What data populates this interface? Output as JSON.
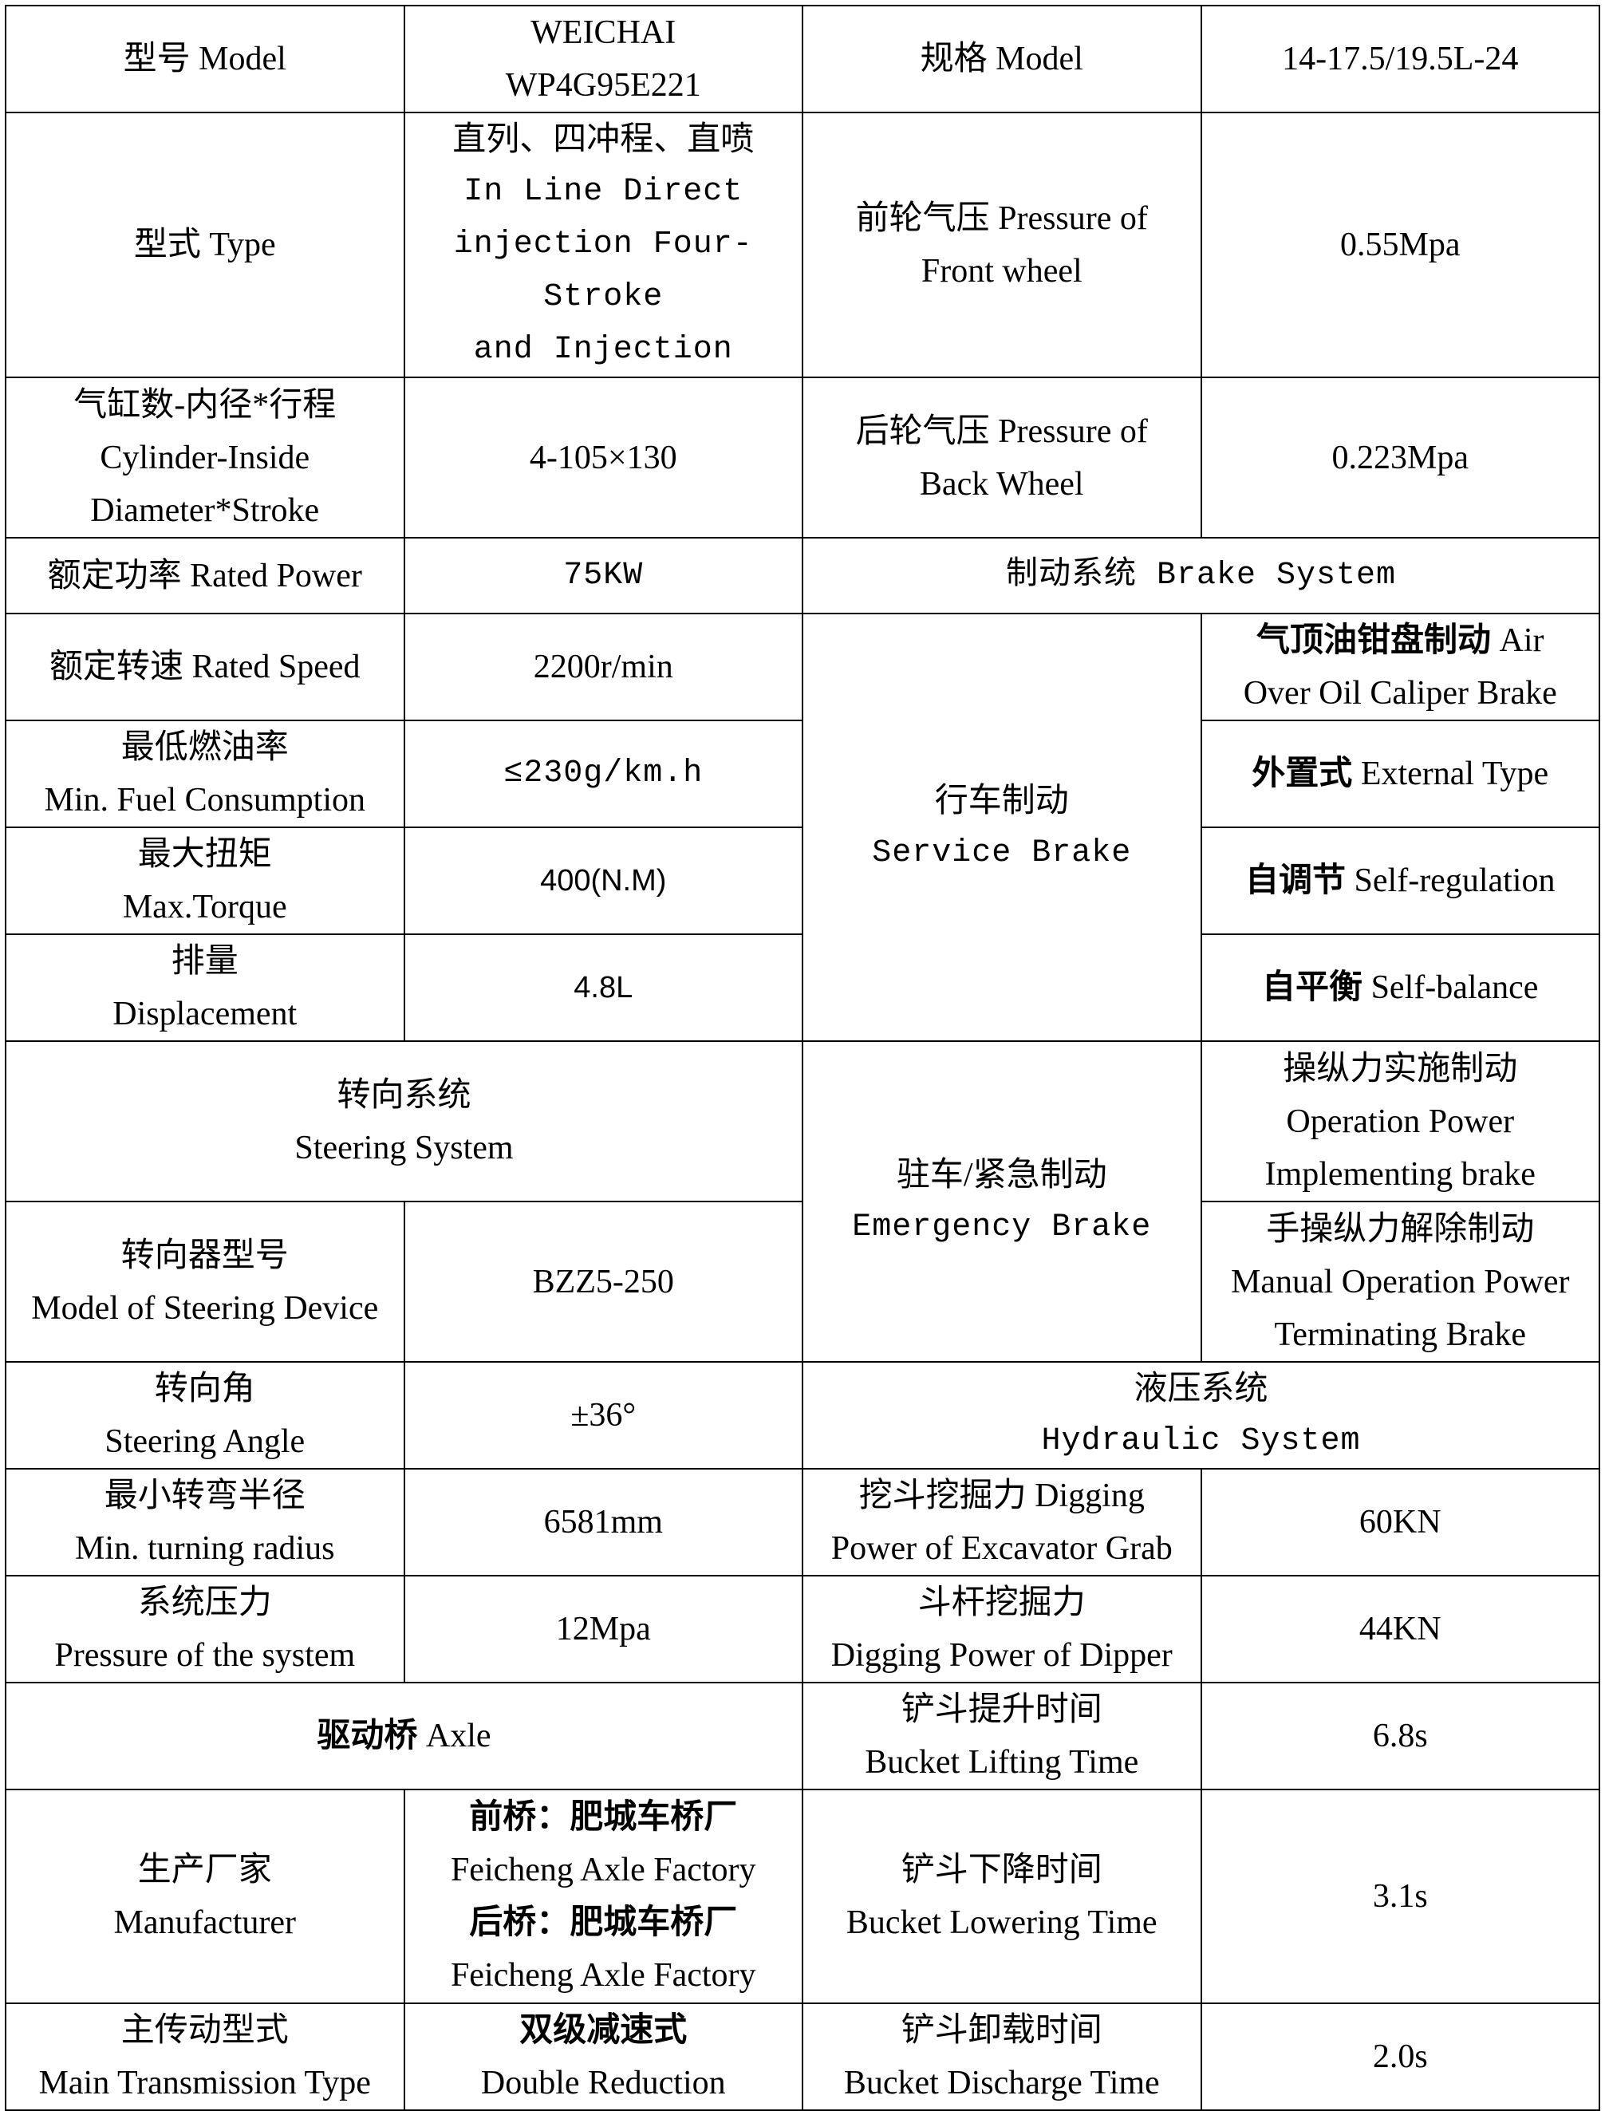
{
  "cells": {
    "model_label": [
      "型号 Model"
    ],
    "model_value": [
      "WEICHAI",
      "WP4G95E221"
    ],
    "spec_label": [
      "规格 Model"
    ],
    "spec_value": [
      "14-17.5/19.5L-24"
    ],
    "type_label": [
      "型式 Type"
    ],
    "type_value": [
      "直列、四冲程、直喷",
      "In Line Direct",
      "injection Four-Stroke",
      "and Injection"
    ],
    "front_pressure_label": [
      "前轮气压 Pressure of",
      "Front wheel"
    ],
    "front_pressure_value": [
      "0.55Mpa"
    ],
    "cylinder_label": [
      "气缸数-内径*行程",
      "Cylinder-Inside",
      "Diameter*Stroke"
    ],
    "cylinder_value": [
      "4-105×130"
    ],
    "back_pressure_label": [
      "后轮气压 Pressure of",
      "Back Wheel"
    ],
    "back_pressure_value": [
      "0.223Mpa"
    ],
    "power_label": [
      "额定功率 Rated Power"
    ],
    "power_value": [
      "75KW"
    ],
    "brake_header": [
      "制动系统 Brake System"
    ],
    "speed_label": [
      "额定转速 Rated Speed"
    ],
    "speed_value": [
      "2200r/min"
    ],
    "service_brake": [
      "行车制动",
      "Service Brake"
    ],
    "brake_1": [
      "气顶油钳盘制动 Air",
      "Over Oil Caliper Brake"
    ],
    "fuel_label": [
      "最低燃油率",
      "Min. Fuel Consumption"
    ],
    "fuel_value": [
      "≤230g/km.h"
    ],
    "brake_2": [
      "外置式 External Type"
    ],
    "torque_label": [
      "最大扭矩",
      "Max.Torque"
    ],
    "torque_value": [
      "400(N.M)"
    ],
    "brake_3": [
      "自调节 Self-regulation"
    ],
    "displacement_label": [
      "排量",
      "Displacement"
    ],
    "displacement_value": [
      "4.8L"
    ],
    "brake_4": [
      "自平衡 Self-balance"
    ],
    "steering_header": [
      "转向系统",
      "Steering System"
    ],
    "emergency_brake": [
      "驻车/紧急制动",
      "Emergency Brake"
    ],
    "emergency_1": [
      "操纵力实施制动",
      "Operation Power",
      "Implementing brake"
    ],
    "steering_device_label": [
      "转向器型号",
      "Model of Steering Device"
    ],
    "steering_device_value": [
      "BZZ5-250"
    ],
    "emergency_2": [
      "手操纵力解除制动",
      "Manual Operation Power",
      "Terminating Brake"
    ],
    "angle_label": [
      "转向角",
      "Steering Angle"
    ],
    "angle_value": [
      "±36°"
    ],
    "hydraulic_header": [
      "液压系统",
      "Hydraulic System"
    ],
    "radius_label": [
      "最小转弯半径",
      "Min. turning radius"
    ],
    "radius_value": [
      "6581mm"
    ],
    "grab_label": [
      "挖斗挖掘力 Digging",
      "Power of Excavator Grab"
    ],
    "grab_value": [
      "60KN"
    ],
    "system_pressure_label": [
      "系统压力",
      "Pressure of the system"
    ],
    "system_pressure_value": [
      "12Mpa"
    ],
    "dipper_label": [
      "斗杆挖掘力",
      "Digging Power of Dipper"
    ],
    "dipper_value": [
      "44KN"
    ],
    "axle_header": [
      "驱动桥 Axle"
    ],
    "lifting_label": [
      "铲斗提升时间",
      "Bucket Lifting Time"
    ],
    "lifting_value": [
      "6.8s"
    ],
    "manufacturer_label": [
      "生产厂家",
      "Manufacturer"
    ],
    "manufacturer_value": [
      "前桥：肥城车桥厂",
      "Feicheng Axle Factory",
      "后桥：肥城车桥厂",
      "Feicheng Axle Factory"
    ],
    "lowering_label": [
      "铲斗下降时间",
      "Bucket Lowering Time"
    ],
    "lowering_value": [
      "3.1s"
    ],
    "transmission_label": [
      "主传动型式",
      "Main Transmission Type"
    ],
    "transmission_value": [
      "双级减速式",
      "Double Reduction"
    ],
    "discharge_label": [
      "铲斗卸载时间",
      "Bucket Discharge Time"
    ],
    "discharge_value": [
      "2.0s"
    ]
  }
}
